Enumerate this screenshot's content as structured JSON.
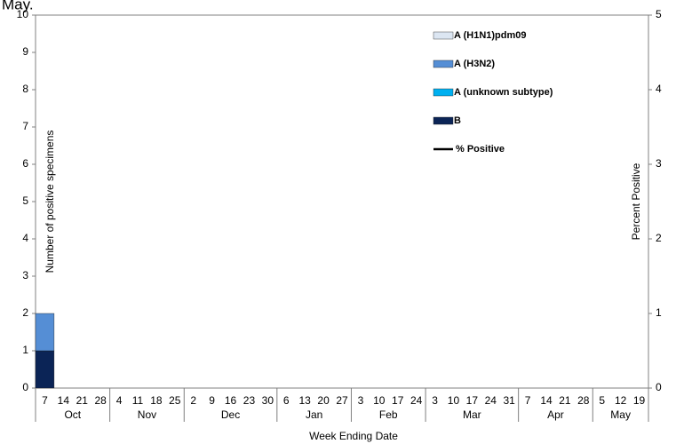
{
  "chart_data": {
    "type": "bar",
    "stacked": true,
    "title": "May.",
    "x_label": "Week Ending Date",
    "y_label": "Number of positive specimens",
    "y2_label": "Percent Positive",
    "categories": [
      "7",
      "14",
      "21",
      "28",
      "4",
      "11",
      "18",
      "25",
      "2",
      "9",
      "16",
      "23",
      "30",
      "6",
      "13",
      "20",
      "27",
      "3",
      "10",
      "17",
      "24",
      "3",
      "10",
      "17",
      "24",
      "31",
      "7",
      "14",
      "21",
      "28",
      "5",
      "12",
      "19"
    ],
    "groups": [
      {
        "label": "Oct",
        "span": 4
      },
      {
        "label": "Nov",
        "span": 4
      },
      {
        "label": "Dec",
        "span": 5
      },
      {
        "label": "Jan",
        "span": 4
      },
      {
        "label": "Feb",
        "span": 4
      },
      {
        "label": "Mar",
        "span": 5
      },
      {
        "label": "Apr",
        "span": 4
      },
      {
        "label": "May",
        "span": 3
      }
    ],
    "series": [
      {
        "name": "A (H1N1)pdm09",
        "color": "#dce6f2",
        "values": [
          0,
          0,
          0,
          0,
          0,
          0,
          0,
          0,
          0,
          0,
          0,
          0,
          0,
          0,
          0,
          0,
          0,
          0,
          0,
          0,
          0,
          0,
          0,
          0,
          0,
          0,
          0,
          0,
          0,
          0,
          0,
          0,
          0
        ]
      },
      {
        "name": "A (H3N2)",
        "color": "#558ed5",
        "values": [
          1,
          0,
          0,
          0,
          0,
          0,
          0,
          0,
          0,
          0,
          0,
          0,
          0,
          0,
          0,
          0,
          0,
          0,
          0,
          0,
          0,
          0,
          0,
          0,
          0,
          0,
          0,
          0,
          0,
          0,
          0,
          0,
          0
        ]
      },
      {
        "name": "A (unknown subtype)",
        "color": "#00b0f0",
        "values": [
          0,
          0,
          0,
          0,
          0,
          0,
          0,
          0,
          0,
          0,
          0,
          0,
          0,
          0,
          0,
          0,
          0,
          0,
          0,
          0,
          0,
          0,
          0,
          0,
          0,
          0,
          0,
          0,
          0,
          0,
          0,
          0,
          0
        ]
      },
      {
        "name": "B",
        "color": "#0b2456",
        "values": [
          1,
          0,
          0,
          0,
          0,
          0,
          0,
          0,
          0,
          0,
          0,
          0,
          0,
          0,
          0,
          0,
          0,
          0,
          0,
          0,
          0,
          0,
          0,
          0,
          0,
          0,
          0,
          0,
          0,
          0,
          0,
          0,
          0
        ]
      }
    ],
    "line_series": {
      "name": "% Positive",
      "color": "#000000",
      "axis": "y2",
      "values": [
        null,
        null,
        null,
        null,
        null,
        null,
        null,
        null,
        null,
        null,
        null,
        null,
        null,
        null,
        null,
        null,
        null,
        null,
        null,
        null,
        null,
        null,
        null,
        null,
        null,
        null,
        null,
        null,
        null,
        null,
        null,
        null,
        null
      ]
    },
    "ylim": [
      0,
      10
    ],
    "yticks": [
      0,
      1,
      2,
      3,
      4,
      5,
      6,
      7,
      8,
      9,
      10
    ],
    "y2lim": [
      0,
      5
    ],
    "y2ticks": [
      0,
      1,
      2,
      3,
      4,
      5
    ]
  }
}
